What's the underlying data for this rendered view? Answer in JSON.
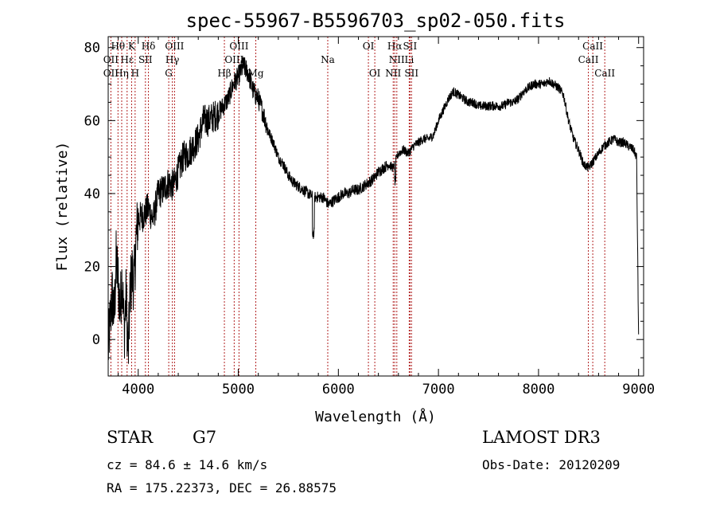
{
  "chart_data": {
    "type": "line",
    "title": "spec-55967-B5596703_sp02-050.fits",
    "xlabel": "Wavelength (Å)",
    "ylabel": "Flux (relative)",
    "xlim": [
      3700,
      9050
    ],
    "ylim": [
      -10,
      83
    ],
    "x_ticks": [
      4000,
      5000,
      6000,
      7000,
      8000,
      9000
    ],
    "y_ticks": [
      0,
      20,
      40,
      60,
      80
    ],
    "grid": false,
    "line_color": "#000000",
    "marker_color": "#b22222",
    "spectrum_anchors": {
      "x": [
        3700,
        3720,
        3740,
        3760,
        3780,
        3800,
        3820,
        3840,
        3860,
        3880,
        3900,
        3920,
        3940,
        3960,
        3980,
        4000,
        4050,
        4100,
        4150,
        4200,
        4250,
        4300,
        4350,
        4400,
        4450,
        4500,
        4550,
        4600,
        4650,
        4700,
        4750,
        4800,
        4850,
        4900,
        4950,
        5000,
        5050,
        5100,
        5150,
        5200,
        5250,
        5300,
        5350,
        5400,
        5450,
        5500,
        5550,
        5600,
        5650,
        5700,
        5750,
        5800,
        5850,
        5900,
        5950,
        6000,
        6050,
        6100,
        6150,
        6200,
        6250,
        6300,
        6350,
        6400,
        6450,
        6500,
        6550,
        6600,
        6650,
        6700,
        6750,
        6800,
        6850,
        6900,
        6950,
        7000,
        7050,
        7100,
        7150,
        7200,
        7250,
        7300,
        7350,
        7400,
        7450,
        7500,
        7550,
        7600,
        7650,
        7700,
        7750,
        7800,
        7850,
        7900,
        7950,
        8000,
        8050,
        8100,
        8150,
        8200,
        8250,
        8300,
        8350,
        8400,
        8450,
        8500,
        8550,
        8600,
        8650,
        8700,
        8750,
        8800,
        8850,
        8900,
        8950,
        8980,
        9000
      ],
      "y": [
        -3,
        5,
        12,
        6,
        22,
        16,
        8,
        18,
        2,
        12,
        -5,
        14,
        18,
        16,
        28,
        33,
        34,
        36,
        33,
        40,
        41,
        43,
        42,
        46,
        50,
        51,
        53,
        55,
        60,
        60,
        61,
        62,
        64,
        66,
        70,
        72,
        75,
        73,
        68,
        66,
        62,
        57,
        54,
        50,
        48,
        45,
        43,
        42,
        41,
        40,
        39,
        39,
        39,
        37,
        38,
        39,
        40,
        40,
        41,
        41,
        42,
        43,
        44,
        46,
        47,
        48,
        47,
        51,
        52,
        51,
        53,
        54,
        55,
        55,
        56,
        60,
        63,
        66,
        68,
        67,
        66,
        65,
        65,
        64,
        64,
        64,
        64,
        64,
        64,
        65,
        65,
        66,
        68,
        69,
        70,
        70,
        70,
        71,
        70,
        69,
        67,
        60,
        55,
        52,
        48,
        47,
        49,
        51,
        53,
        54,
        55,
        54,
        54,
        53,
        52,
        50,
        0
      ]
    },
    "line_markers": [
      {
        "label": "Hθ",
        "x": 3798,
        "row": 0
      },
      {
        "label": "OII",
        "x": 3727,
        "row": 1
      },
      {
        "label": "OII",
        "x": 3727,
        "row": 2
      },
      {
        "label": "Hε",
        "x": 3889,
        "row": 1
      },
      {
        "label": "Hη",
        "x": 3835,
        "row": 2
      },
      {
        "label": "K",
        "x": 3934,
        "row": 0
      },
      {
        "label": "SII",
        "x": 4072,
        "row": 1
      },
      {
        "label": "H",
        "x": 3969,
        "row": 2
      },
      {
        "label": "Hδ",
        "x": 4102,
        "row": 0
      },
      {
        "label": "OIII",
        "x": 4363,
        "row": 0
      },
      {
        "label": "Hγ",
        "x": 4341,
        "row": 1
      },
      {
        "label": "G",
        "x": 4305,
        "row": 2
      },
      {
        "label": "OIII",
        "x": 5007,
        "row": 0
      },
      {
        "label": "OIII",
        "x": 4959,
        "row": 1
      },
      {
        "label": "Hβ",
        "x": 4861,
        "row": 2
      },
      {
        "label": "Mg",
        "x": 5175,
        "row": 2
      },
      {
        "label": "Na",
        "x": 5894,
        "row": 1
      },
      {
        "label": "OI",
        "x": 6300,
        "row": 0
      },
      {
        "label": "OI",
        "x": 6364,
        "row": 2
      },
      {
        "label": "Hα",
        "x": 6563,
        "row": 0
      },
      {
        "label": "SII",
        "x": 6716,
        "row": 0
      },
      {
        "label": "NII",
        "x": 6584,
        "row": 1
      },
      {
        "label": "Li",
        "x": 6708,
        "row": 1
      },
      {
        "label": "NII",
        "x": 6548,
        "row": 2
      },
      {
        "label": "SII",
        "x": 6731,
        "row": 2
      },
      {
        "label": "CaII",
        "x": 8542,
        "row": 0
      },
      {
        "label": "CaII",
        "x": 8498,
        "row": 1
      },
      {
        "label": "CaII",
        "x": 8662,
        "row": 2
      }
    ]
  },
  "info": {
    "object_class": "STAR",
    "subclass": "G7",
    "survey": "LAMOST DR3",
    "velocity": "cz = 84.6 ± 14.6 km/s",
    "obs_date": "Obs-Date: 20120209",
    "coords": "RA = 175.22373, DEC =  26.88575"
  }
}
